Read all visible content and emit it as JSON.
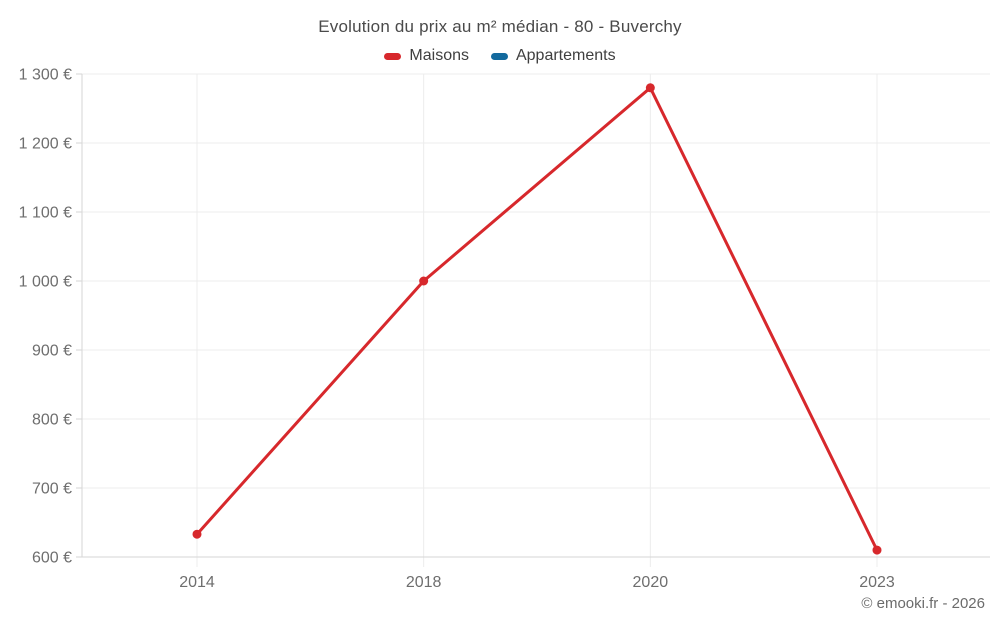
{
  "title": "Evolution du prix au m² médian - 80 - Buverchy",
  "legend": {
    "items": [
      {
        "label": "Maisons",
        "color": "#d7282c"
      },
      {
        "label": "Appartements",
        "color": "#136a9e"
      }
    ]
  },
  "footer": {
    "credit": "© emooki.fr - 2026"
  },
  "colors": {
    "background": "#ffffff",
    "title_text": "#4a4a4a",
    "legend_text": "#3f3f3f",
    "axis_text": "#6e6e6e",
    "footer_text": "#6b6b6b",
    "grid": "#ececec",
    "axis": "#d6d6d6",
    "maisons": "#d7282c",
    "appartements": "#136a9e"
  },
  "chart_data": {
    "type": "line",
    "title": "Evolution du prix au m² médian - 80 - Buverchy",
    "categories": [
      "2014",
      "2018",
      "2020",
      "2023"
    ],
    "series": [
      {
        "name": "Maisons",
        "color": "#d7282c",
        "values": [
          633,
          1000,
          1280,
          610
        ]
      },
      {
        "name": "Appartements",
        "color": "#136a9e",
        "values": []
      }
    ],
    "xlabel": "",
    "ylabel": "",
    "ylim": [
      600,
      1300
    ],
    "ytick_step": 100,
    "yticks": [
      {
        "value": 600,
        "label": "600 €"
      },
      {
        "value": 700,
        "label": "700 €"
      },
      {
        "value": 800,
        "label": "800 €"
      },
      {
        "value": 900,
        "label": "900 €"
      },
      {
        "value": 1000,
        "label": "1 000 €"
      },
      {
        "value": 1100,
        "label": "1 100 €"
      },
      {
        "value": 1200,
        "label": "1 200 €"
      },
      {
        "value": 1300,
        "label": "1 300 €"
      }
    ],
    "grid": true,
    "legend_position": "top"
  }
}
